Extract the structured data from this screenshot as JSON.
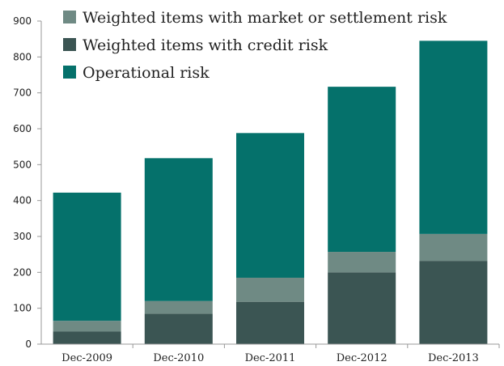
{
  "chart_data": {
    "type": "bar",
    "stacked": true,
    "title": "",
    "xlabel": "",
    "ylabel": "",
    "categories": [
      "Dec-2009",
      "Dec-2010",
      "Dec-2011",
      "Dec-2012",
      "Dec-2013"
    ],
    "series": [
      {
        "name": "Weighted items with credit risk",
        "color": "#3b5553",
        "values": [
          35,
          85,
          118,
          200,
          232
        ]
      },
      {
        "name": "Weighted items with market or settlement risk",
        "color": "#6f8a84",
        "values": [
          30,
          35,
          67,
          57,
          75
        ]
      },
      {
        "name": "Operational risk",
        "color": "#05716b",
        "values": [
          357,
          398,
          403,
          460,
          538
        ]
      }
    ],
    "legend_order": [
      1,
      0,
      2
    ],
    "ylim": [
      0,
      900
    ],
    "yticks": [
      0,
      100,
      200,
      300,
      400,
      500,
      600,
      700,
      800,
      900
    ],
    "grid": false,
    "legend_position": "top-left"
  }
}
